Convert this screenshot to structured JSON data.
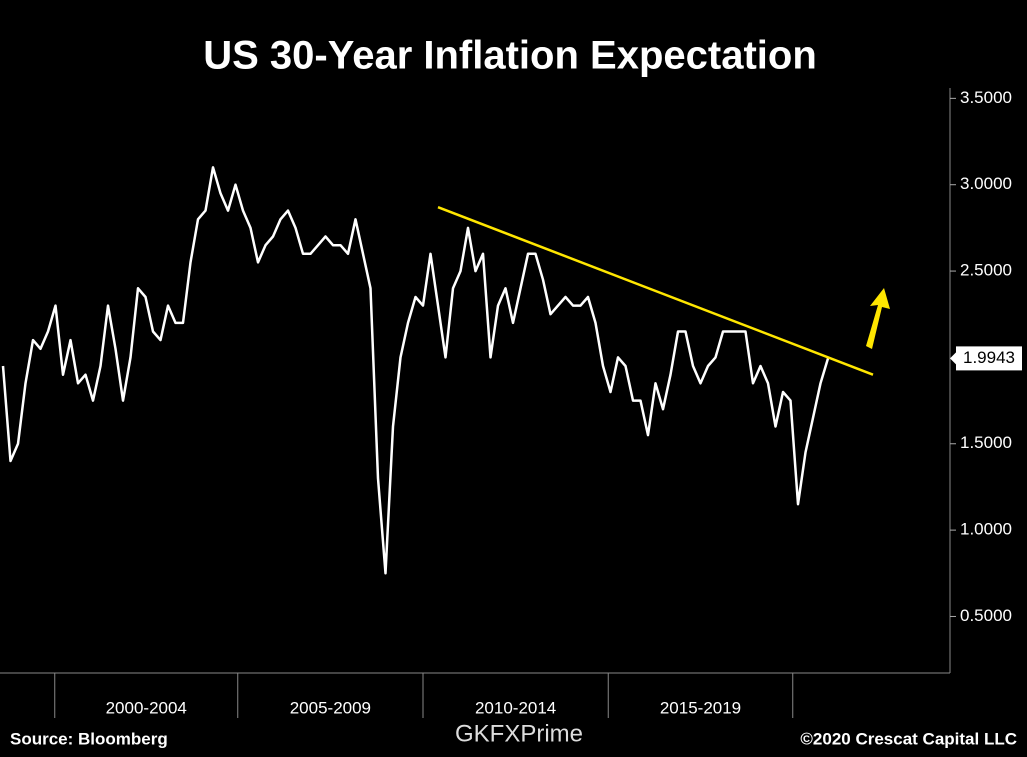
{
  "chart_data": {
    "type": "line",
    "title": "US 30-Year Inflation Expectation",
    "source": "Source: Bloomberg",
    "copyright": "©2020 Crescat Capital LLC",
    "watermark": "GKFXPrime",
    "series": [
      {
        "color": "#ffffff",
        "values": [
          1.95,
          1.4,
          1.5,
          1.85,
          2.1,
          2.05,
          2.15,
          2.3,
          1.9,
          2.1,
          1.85,
          1.9,
          1.75,
          1.95,
          2.3,
          2.05,
          1.75,
          2.0,
          2.4,
          2.35,
          2.15,
          2.1,
          2.3,
          2.2,
          2.2,
          2.55,
          2.8,
          2.85,
          3.1,
          2.95,
          2.85,
          3.0,
          2.85,
          2.75,
          2.55,
          2.65,
          2.7,
          2.8,
          2.85,
          2.75,
          2.6,
          2.6,
          2.65,
          2.7,
          2.65,
          2.65,
          2.6,
          2.8,
          2.6,
          2.4,
          1.3,
          0.75,
          1.6,
          2.0,
          2.2,
          2.35,
          2.3,
          2.6,
          2.3,
          2.0,
          2.4,
          2.5,
          2.75,
          2.5,
          2.6,
          2.0,
          2.3,
          2.4,
          2.2,
          2.4,
          2.6,
          2.6,
          2.45,
          2.25,
          2.3,
          2.35,
          2.3,
          2.3,
          2.35,
          2.2,
          1.95,
          1.8,
          2.0,
          1.95,
          1.75,
          1.75,
          1.55,
          1.85,
          1.7,
          1.9,
          2.15,
          2.15,
          1.95,
          1.85,
          1.95,
          2.0,
          2.15,
          2.15,
          2.15,
          2.15,
          1.85,
          1.95,
          1.85,
          1.6,
          1.8,
          1.75,
          1.15,
          1.45,
          1.65,
          1.85,
          1.9943
        ]
      }
    ],
    "last_value_label": "1.9943",
    "xlim": [
      0,
      120
    ],
    "periods": [
      {
        "label": "2000-2004",
        "start": 6.9,
        "end": 31.3
      },
      {
        "label": "2005-2009",
        "start": 31.3,
        "end": 56
      },
      {
        "label": "2010-2014",
        "start": 56,
        "end": 80.7
      },
      {
        "label": "2015-2019",
        "start": 80.7,
        "end": 105.3
      }
    ],
    "ylim": [
      0.19,
      3.56
    ],
    "yticks": [
      {
        "value": 0.5,
        "label": "0.5000"
      },
      {
        "value": 1.0,
        "label": "1.0000"
      },
      {
        "value": 1.5,
        "label": "1.5000"
      },
      {
        "value": 2.5,
        "label": "2.5000"
      },
      {
        "value": 3.0,
        "label": "3.0000"
      },
      {
        "value": 3.5,
        "label": "3.5000"
      }
    ],
    "trendline": {
      "color": "#ffe600",
      "x": [
        58,
        116
      ],
      "y": [
        2.87,
        1.9
      ]
    }
  }
}
